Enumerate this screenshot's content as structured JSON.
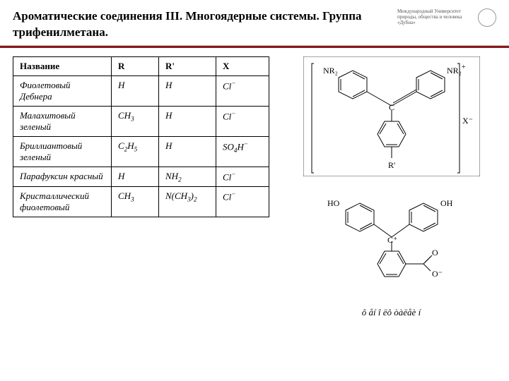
{
  "header": {
    "title": "Ароматические соединения III. Многоядерные системы. Группа трифенилметана.",
    "logo_text": "Международный Университет природы, общества и человека «Дубна»"
  },
  "table": {
    "columns": [
      "Название",
      "R",
      "R'",
      "X"
    ],
    "col_widths": [
      "col-name",
      "col-r",
      "col-rp",
      "col-x"
    ],
    "rows": [
      {
        "name": "Фиолетовый Дебнера",
        "r": "H",
        "rp": "H",
        "x": "Cl<sup>−</sup>"
      },
      {
        "name": "Малахитовый зеленый",
        "r": "CH<sub>3</sub>",
        "rp": "H",
        "x": "Cl<sup>−</sup>"
      },
      {
        "name": "Бриллиантовый зеленый",
        "r": "C<sub>2</sub>H<sub>5</sub>",
        "rp": "H",
        "x": "SO<sub>4</sub>H<sup>−</sup>"
      },
      {
        "name": "Парафуксин красный",
        "r": "H",
        "rp": "NH<sub>2</sub>",
        "x": "Cl<sup>−</sup>"
      },
      {
        "name": "Кристаллический фиолетовый",
        "r": "CH<sub>3</sub>",
        "rp": "N(CH<sub>3</sub>)<sub>2</sub>",
        "x": "Cl<sup>−</sup>"
      }
    ]
  },
  "figures": {
    "fig1": {
      "labels": {
        "l1": "NR₂",
        "l2": "NR₂",
        "plus": "+",
        "c": "C",
        "xminus": "X⁻",
        "rprime": "R'"
      }
    },
    "fig2": {
      "labels": {
        "ho1": "HO",
        "oh2": "OH",
        "cplus": "C⁺",
        "co": "C",
        "o1": "O",
        "o2": "O⁻"
      },
      "caption": "ô åí î ëô òàëåè í"
    }
  },
  "style": {
    "rule_color": "#8b1a1a",
    "border_color": "#000000",
    "bg": "#ffffff",
    "font_body": "Times New Roman",
    "font_size_title": 17,
    "font_size_table": 13
  }
}
